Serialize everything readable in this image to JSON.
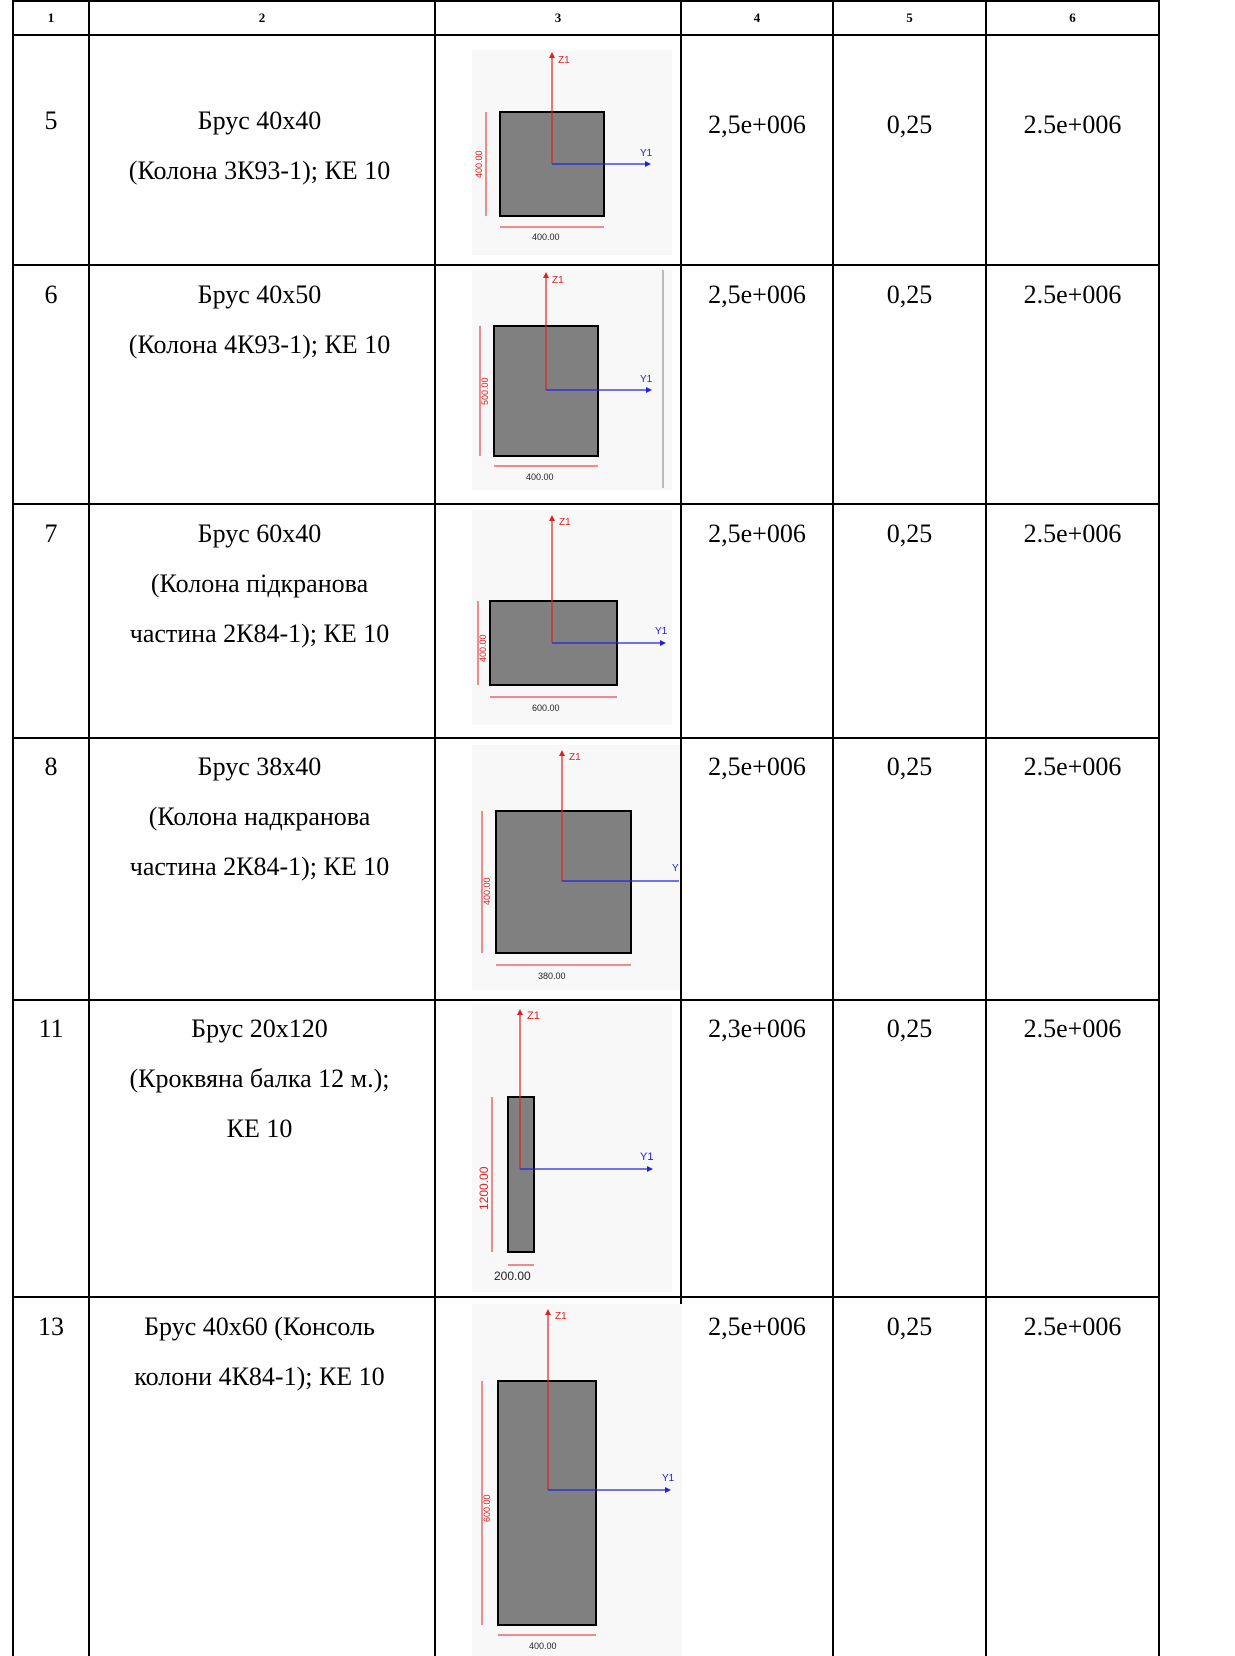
{
  "table": {
    "header": [
      "1",
      "2",
      "3",
      "4",
      "5",
      "6"
    ],
    "rows": [
      {
        "number": "5",
        "name_lines": [
          "Брус 40х40",
          "(Колона 3К93-1); КЕ 10"
        ],
        "section": {
          "type": "rectangle",
          "z_axis": "Z1",
          "y_axis": "Y1",
          "height_label": "400.00",
          "width_label": "400.00"
        },
        "col4": "2,5e+006",
        "col5": "0,25",
        "col6": "2.5e+006"
      },
      {
        "number": "6",
        "name_lines": [
          "Брус 40х50",
          "(Колона 4К93-1); КЕ 10"
        ],
        "section": {
          "type": "rectangle",
          "z_axis": "Z1",
          "y_axis": "Y1",
          "height_label": "500.00",
          "width_label": "400.00"
        },
        "col4": "2,5e+006",
        "col5": "0,25",
        "col6": "2.5e+006"
      },
      {
        "number": "7",
        "name_lines": [
          "Брус 60х40",
          "(Колона підкранова",
          "частина 2К84-1); КЕ 10"
        ],
        "section": {
          "type": "rectangle",
          "z_axis": "Z1",
          "y_axis": "Y1",
          "height_label": "400.00",
          "width_label": "600.00"
        },
        "col4": "2,5e+006",
        "col5": "0,25",
        "col6": "2.5e+006"
      },
      {
        "number": "8",
        "name_lines": [
          "Брус 38х40",
          "(Колона надкранова",
          "частина 2К84-1); КЕ 10"
        ],
        "section": {
          "type": "rectangle",
          "z_axis": "Z1",
          "y_axis": "Y",
          "height_label": "400.00",
          "width_label": "380.00"
        },
        "col4": "2,5e+006",
        "col5": "0,25",
        "col6": "2.5e+006"
      },
      {
        "number": "11",
        "name_lines": [
          "Брус 20х120",
          "(Кроквяна балка 12 м.);",
          "КЕ 10"
        ],
        "section": {
          "type": "rectangle",
          "z_axis": "Z1",
          "y_axis": "Y1",
          "height_label": "1200.00",
          "width_label": "200.00"
        },
        "col4": "2,3e+006",
        "col5": "0,25",
        "col6": "2.5e+006"
      },
      {
        "number": "13",
        "name_lines": [
          "Брус 40х60 (Консоль",
          "колони 4К84-1); КЕ 10"
        ],
        "section": {
          "type": "rectangle",
          "z_axis": "Z1",
          "y_axis": "Y1",
          "height_label": "600.00",
          "width_label": "400.00"
        },
        "col4": "2,5e+006",
        "col5": "0,25",
        "col6": "2.5e+006"
      }
    ]
  }
}
